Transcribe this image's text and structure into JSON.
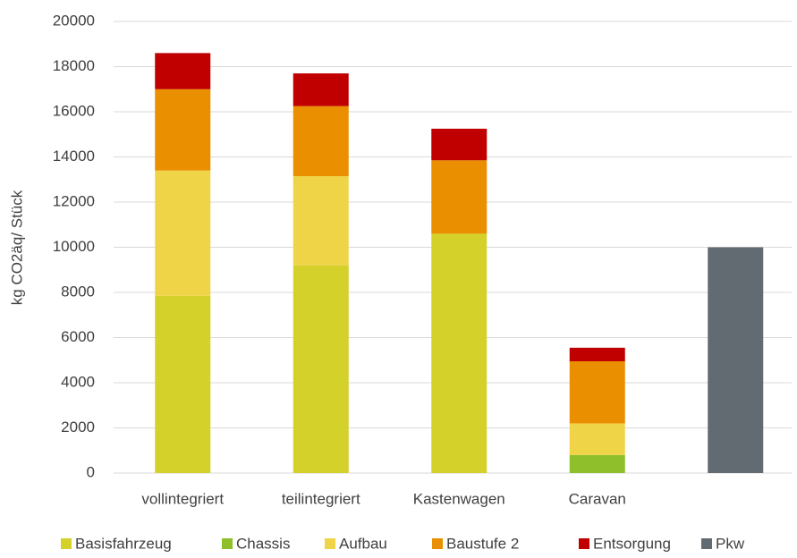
{
  "chart_data": {
    "type": "stacked_bar",
    "ylabel": "kg CO2äq/ Stück",
    "categories": [
      "vollintegriert",
      "teilintegriert",
      "Kastenwagen",
      "Caravan",
      null
    ],
    "series": [
      {
        "name": "Basisfahrzeug",
        "color": "#d4d22a",
        "values": [
          7850,
          9200,
          10600,
          0,
          0
        ]
      },
      {
        "name": "Chassis",
        "color": "#8fbf2a",
        "values": [
          0,
          0,
          0,
          800,
          0
        ]
      },
      {
        "name": "Aufbau",
        "color": "#f0d448",
        "values": [
          5550,
          3950,
          0,
          1400,
          0
        ]
      },
      {
        "name": "Baustufe 2",
        "color": "#ea8f00",
        "values": [
          3600,
          3100,
          3250,
          2750,
          0
        ]
      },
      {
        "name": "Entsorgung",
        "color": "#c00000",
        "values": [
          1600,
          1450,
          1400,
          600,
          0
        ]
      },
      {
        "name": "Pkw",
        "color": "#636b72",
        "values": [
          0,
          0,
          0,
          0,
          10000
        ]
      }
    ],
    "ylim": [
      0,
      20000
    ],
    "yticks": [
      0,
      2000,
      4000,
      6000,
      8000,
      10000,
      12000,
      14000,
      16000,
      18000,
      20000
    ],
    "grid": true,
    "legend": "bottom"
  }
}
